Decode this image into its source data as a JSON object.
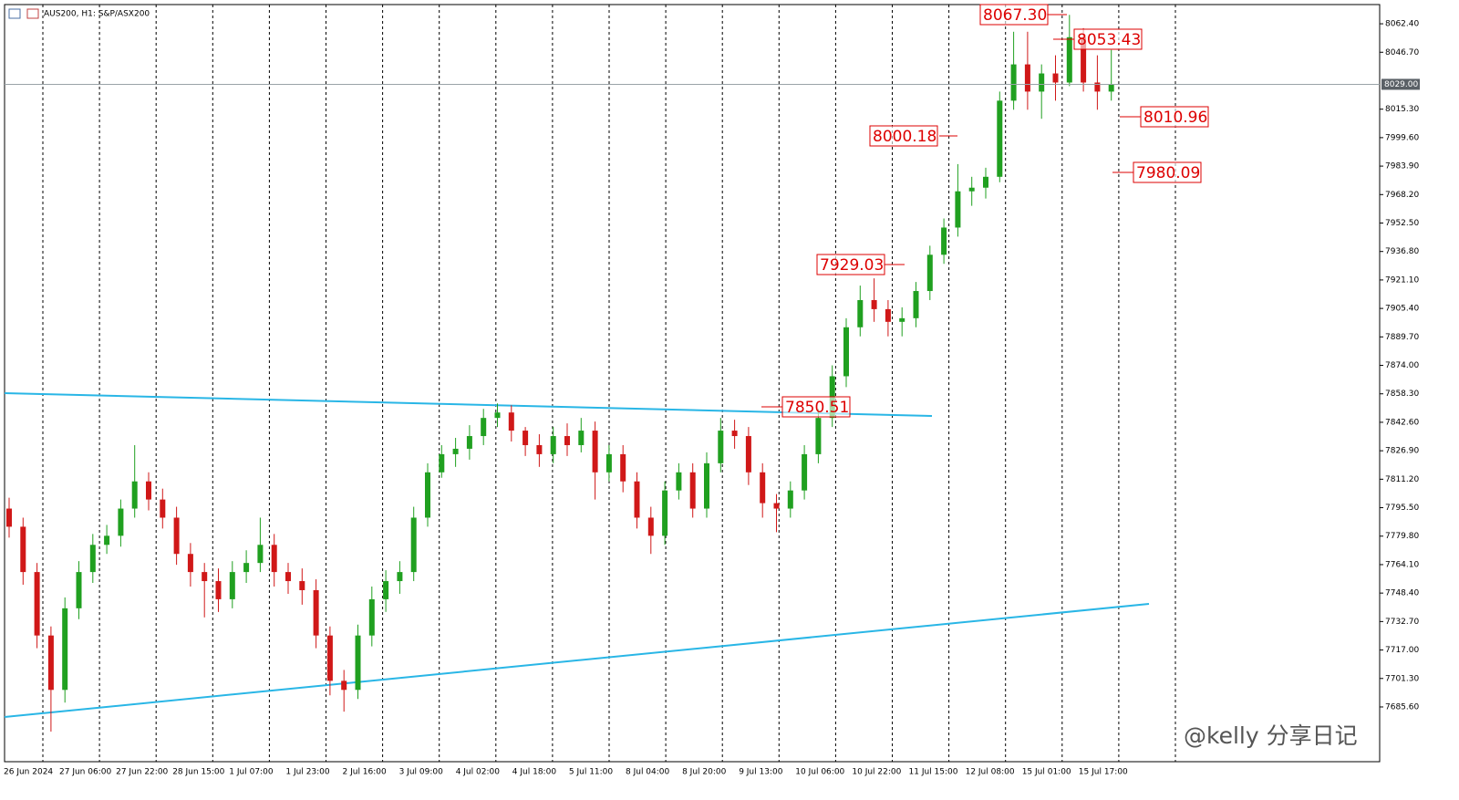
{
  "chart_data": {
    "type": "candlestick",
    "title": "AUS200, H1:  S&P/ASX200",
    "up_color": "#20a020",
    "down_color": "#d01818",
    "ylim": [
      7655.4,
      8073.0
    ],
    "yticks": [
      {
        "value": 8062.4,
        "label": "8062.40"
      },
      {
        "value": 8046.7,
        "label": "8046.70"
      },
      {
        "value": 8015.3,
        "label": "8015.30"
      },
      {
        "value": 7999.6,
        "label": "7999.60"
      },
      {
        "value": 7983.9,
        "label": "7983.90"
      },
      {
        "value": 7968.2,
        "label": "7968.20"
      },
      {
        "value": 7952.5,
        "label": "7952.50"
      },
      {
        "value": 7936.8,
        "label": "7936.80"
      },
      {
        "value": 7921.1,
        "label": "7921.10"
      },
      {
        "value": 7905.4,
        "label": "7905.40"
      },
      {
        "value": 7889.7,
        "label": "7889.70"
      },
      {
        "value": 7874,
        "label": "7874.00"
      },
      {
        "value": 7858.3,
        "label": "7858.30"
      },
      {
        "value": 7842.6,
        "label": "7842.60"
      },
      {
        "value": 7826.9,
        "label": "7826.90"
      },
      {
        "value": 7811.2,
        "label": "7811.20"
      },
      {
        "value": 7795.5,
        "label": "7795.50"
      },
      {
        "value": 7779.8,
        "label": "7779.80"
      },
      {
        "value": 7764.1,
        "label": "7764.10"
      },
      {
        "value": 7748.4,
        "label": "7748.40"
      },
      {
        "value": 7732.7,
        "label": "7732.70"
      },
      {
        "value": 7717,
        "label": "7717.00"
      },
      {
        "value": 7701.3,
        "label": "7701.30"
      },
      {
        "value": 7685.6,
        "label": "7685.60"
      }
    ],
    "time_labels": [
      "26 Jun 2024",
      "27 Jun 06:00",
      "27 Jun 22:00",
      "28 Jun 15:00",
      "1 Jul 07:00",
      "1 Jul 23:00",
      "2 Jul 16:00",
      "3 Jul 09:00",
      "4 Jul 02:00",
      "4 Jul 18:00",
      "5 Jul 11:00",
      "8 Jul 04:00",
      "8 Jul 20:00",
      "9 Jul 13:00",
      "10 Jul 06:00",
      "10 Jul 22:00",
      "11 Jul 15:00",
      "12 Jul 08:00",
      "15 Jul 01:00",
      "15 Jul 17:00"
    ],
    "current_price": {
      "value": 8029,
      "label": "8029.00"
    },
    "annotations": [
      "8067.30",
      "8053.43",
      "8010.96",
      "8000.18",
      "7980.09",
      "7929.03",
      "7850.51"
    ],
    "watermark": "@kelly 分享日记",
    "open": [
      7795,
      7785,
      7760,
      7725,
      7695,
      7740,
      7760,
      7775,
      7780,
      7795,
      7810,
      7800,
      7790,
      7770,
      7760,
      7755,
      7745,
      7760,
      7765,
      7775,
      7760,
      7755,
      7750,
      7725,
      7700,
      7695,
      7725,
      7745,
      7755,
      7760,
      7790,
      7815,
      7825,
      7828,
      7835,
      7845,
      7848,
      7838,
      7830,
      7825,
      7835,
      7830,
      7838,
      7815,
      7825,
      7810,
      7790,
      7780,
      7805,
      7815,
      7795,
      7820,
      7838,
      7835,
      7815,
      7798,
      7795,
      7805,
      7825,
      7845,
      7868,
      7895,
      7910,
      7905,
      7898,
      7900,
      7915,
      7935,
      7950,
      7970,
      7972,
      7978,
      8020,
      8040,
      8025,
      8035,
      8030,
      8055,
      8030,
      8025
    ],
    "high": [
      7801,
      7790,
      7765,
      7730,
      7746,
      7766,
      7781,
      7786,
      7800,
      7830,
      7815,
      7806,
      7796,
      7776,
      7765,
      7762,
      7766,
      7772,
      7790,
      7781,
      7765,
      7762,
      7756,
      7730,
      7706,
      7731,
      7752,
      7761,
      7766,
      7796,
      7820,
      7830,
      7834,
      7841,
      7850,
      7853,
      7852,
      7840,
      7836,
      7840,
      7842,
      7845,
      7843,
      7830,
      7830,
      7815,
      7796,
      7810,
      7820,
      7820,
      7826,
      7845,
      7844,
      7840,
      7820,
      7803,
      7810,
      7830,
      7850,
      7874,
      7900,
      7918,
      7922,
      7910,
      7906,
      7920,
      7940,
      7955,
      7985,
      7978,
      7983,
      8025,
      8058,
      8058,
      8040,
      8045,
      8067.3,
      8060,
      8045,
      8048
    ],
    "low": [
      7779,
      7753,
      7718,
      7672,
      7688,
      7734,
      7754,
      7770,
      7774,
      7790,
      7794,
      7784,
      7764,
      7752,
      7735,
      7738,
      7740,
      7754,
      7760,
      7752,
      7748,
      7742,
      7718,
      7692,
      7683,
      7690,
      7719,
      7738,
      7748,
      7755,
      7785,
      7812,
      7818,
      7822,
      7830,
      7840,
      7832,
      7824,
      7818,
      7820,
      7824,
      7826,
      7800,
      7810,
      7804,
      7784,
      7770,
      7775,
      7800,
      7790,
      7790,
      7815,
      7828,
      7808,
      7790,
      7782,
      7790,
      7800,
      7820,
      7840,
      7862,
      7890,
      7898,
      7890,
      7890,
      7895,
      7910,
      7930,
      7945,
      7962,
      7966,
      7975,
      8015,
      8015,
      8010,
      8020,
      8028,
      8025,
      8015,
      8020
    ],
    "close": [
      7785,
      7760,
      7725,
      7695,
      7740,
      7760,
      7775,
      7780,
      7795,
      7810,
      7800,
      7790,
      7770,
      7760,
      7755,
      7745,
      7760,
      7765,
      7775,
      7760,
      7755,
      7750,
      7725,
      7700,
      7695,
      7725,
      7745,
      7755,
      7760,
      7790,
      7815,
      7825,
      7828,
      7835,
      7845,
      7848,
      7838,
      7830,
      7825,
      7835,
      7830,
      7838,
      7815,
      7825,
      7810,
      7790,
      7780,
      7805,
      7815,
      7795,
      7820,
      7838,
      7835,
      7815,
      7798,
      7795,
      7805,
      7825,
      7845,
      7868,
      7895,
      7910,
      7905,
      7898,
      7900,
      7915,
      7935,
      7950,
      7970,
      7972,
      7978,
      8020,
      8040,
      8025,
      8035,
      8030,
      8055,
      8030,
      8025,
      8029
    ]
  }
}
